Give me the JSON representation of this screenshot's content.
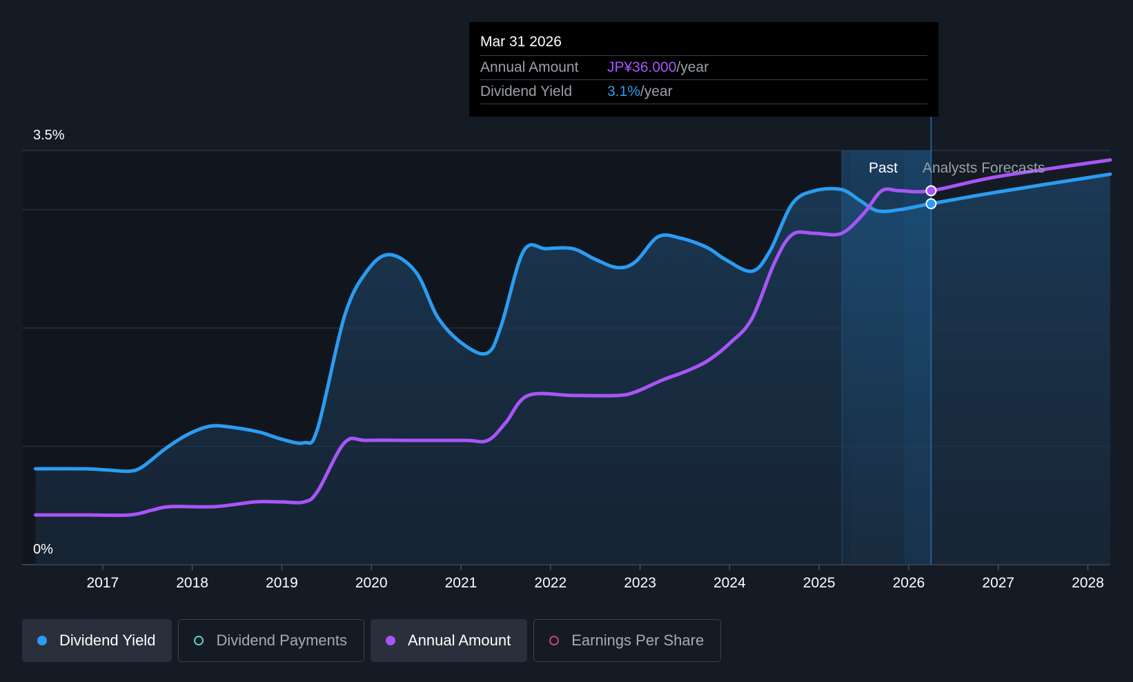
{
  "chart_data": {
    "type": "line",
    "y_axis": {
      "top_label": "3.5%",
      "bottom_label": "0%",
      "ylim": [
        0,
        3.5
      ]
    },
    "x_axis": {
      "ticks": [
        "2017",
        "2018",
        "2019",
        "2020",
        "2021",
        "2022",
        "2023",
        "2024",
        "2025",
        "2026",
        "2027",
        "2028"
      ],
      "xlim": [
        2016.1,
        2028.25
      ]
    },
    "regions": {
      "past_label": "Past",
      "forecast_label": "Analysts Forecasts",
      "forecast_start": 2025.25,
      "highlight_start": 2025.95,
      "marker_date": 2026.25
    },
    "series": [
      {
        "name": "Dividend Yield",
        "color": "#2b9cf2",
        "unit": "%",
        "points": [
          [
            2016.25,
            0.81
          ],
          [
            2016.8,
            0.81
          ],
          [
            2017.05,
            0.8
          ],
          [
            2017.3,
            0.79
          ],
          [
            2017.45,
            0.83
          ],
          [
            2017.7,
            0.98
          ],
          [
            2017.95,
            1.1
          ],
          [
            2018.2,
            1.17
          ],
          [
            2018.45,
            1.16
          ],
          [
            2018.75,
            1.12
          ],
          [
            2019.0,
            1.06
          ],
          [
            2019.25,
            1.03
          ],
          [
            2019.4,
            1.15
          ],
          [
            2019.7,
            2.1
          ],
          [
            2019.95,
            2.48
          ],
          [
            2020.2,
            2.62
          ],
          [
            2020.5,
            2.47
          ],
          [
            2020.75,
            2.08
          ],
          [
            2021.05,
            1.85
          ],
          [
            2021.3,
            1.79
          ],
          [
            2021.45,
            2.02
          ],
          [
            2021.7,
            2.65
          ],
          [
            2021.95,
            2.67
          ],
          [
            2022.25,
            2.67
          ],
          [
            2022.5,
            2.58
          ],
          [
            2022.75,
            2.51
          ],
          [
            2022.95,
            2.56
          ],
          [
            2023.2,
            2.77
          ],
          [
            2023.45,
            2.76
          ],
          [
            2023.75,
            2.68
          ],
          [
            2023.95,
            2.58
          ],
          [
            2024.25,
            2.48
          ],
          [
            2024.45,
            2.65
          ],
          [
            2024.7,
            3.05
          ],
          [
            2024.95,
            3.16
          ],
          [
            2025.25,
            3.17
          ],
          [
            2025.45,
            3.08
          ],
          [
            2025.65,
            2.99
          ],
          [
            2025.9,
            3.0
          ],
          [
            2026.25,
            3.05
          ],
          [
            2027.0,
            3.15
          ],
          [
            2028.25,
            3.3
          ]
        ]
      },
      {
        "name": "Annual Amount",
        "color": "#a855f7",
        "unit": "JP¥",
        "points": [
          [
            2016.25,
            0.42
          ],
          [
            2016.8,
            0.42
          ],
          [
            2017.3,
            0.42
          ],
          [
            2017.55,
            0.46
          ],
          [
            2017.75,
            0.49
          ],
          [
            2018.25,
            0.49
          ],
          [
            2018.7,
            0.53
          ],
          [
            2019.0,
            0.53
          ],
          [
            2019.25,
            0.53
          ],
          [
            2019.4,
            0.62
          ],
          [
            2019.7,
            1.03
          ],
          [
            2019.95,
            1.05
          ],
          [
            2020.5,
            1.05
          ],
          [
            2021.05,
            1.05
          ],
          [
            2021.3,
            1.05
          ],
          [
            2021.5,
            1.2
          ],
          [
            2021.75,
            1.43
          ],
          [
            2022.25,
            1.43
          ],
          [
            2022.75,
            1.43
          ],
          [
            2022.95,
            1.46
          ],
          [
            2023.25,
            1.56
          ],
          [
            2023.5,
            1.63
          ],
          [
            2023.75,
            1.72
          ],
          [
            2024.0,
            1.87
          ],
          [
            2024.25,
            2.08
          ],
          [
            2024.5,
            2.55
          ],
          [
            2024.7,
            2.79
          ],
          [
            2024.95,
            2.8
          ],
          [
            2025.25,
            2.8
          ],
          [
            2025.5,
            2.97
          ],
          [
            2025.7,
            3.16
          ],
          [
            2025.9,
            3.16
          ],
          [
            2026.25,
            3.16
          ],
          [
            2027.0,
            3.28
          ],
          [
            2028.25,
            3.42
          ]
        ]
      }
    ],
    "tooltip": {
      "date": "Mar 31 2026",
      "rows": [
        {
          "label": "Annual Amount",
          "value": "JP¥36.000",
          "unit": "/year"
        },
        {
          "label": "Dividend Yield",
          "value": "3.1%",
          "unit": "/year"
        }
      ]
    }
  },
  "legend": [
    {
      "label": "Dividend Yield",
      "active": true,
      "color": "#2b9cf2",
      "icon": "filled-dot-icon"
    },
    {
      "label": "Dividend Payments",
      "active": false,
      "color": "#5dd1c0",
      "icon": "hollow-dot-icon"
    },
    {
      "label": "Annual Amount",
      "active": true,
      "color": "#a855f7",
      "icon": "filled-dot-icon"
    },
    {
      "label": "Earnings Per Share",
      "active": false,
      "color": "#c2477a",
      "icon": "hollow-dot-icon"
    }
  ]
}
